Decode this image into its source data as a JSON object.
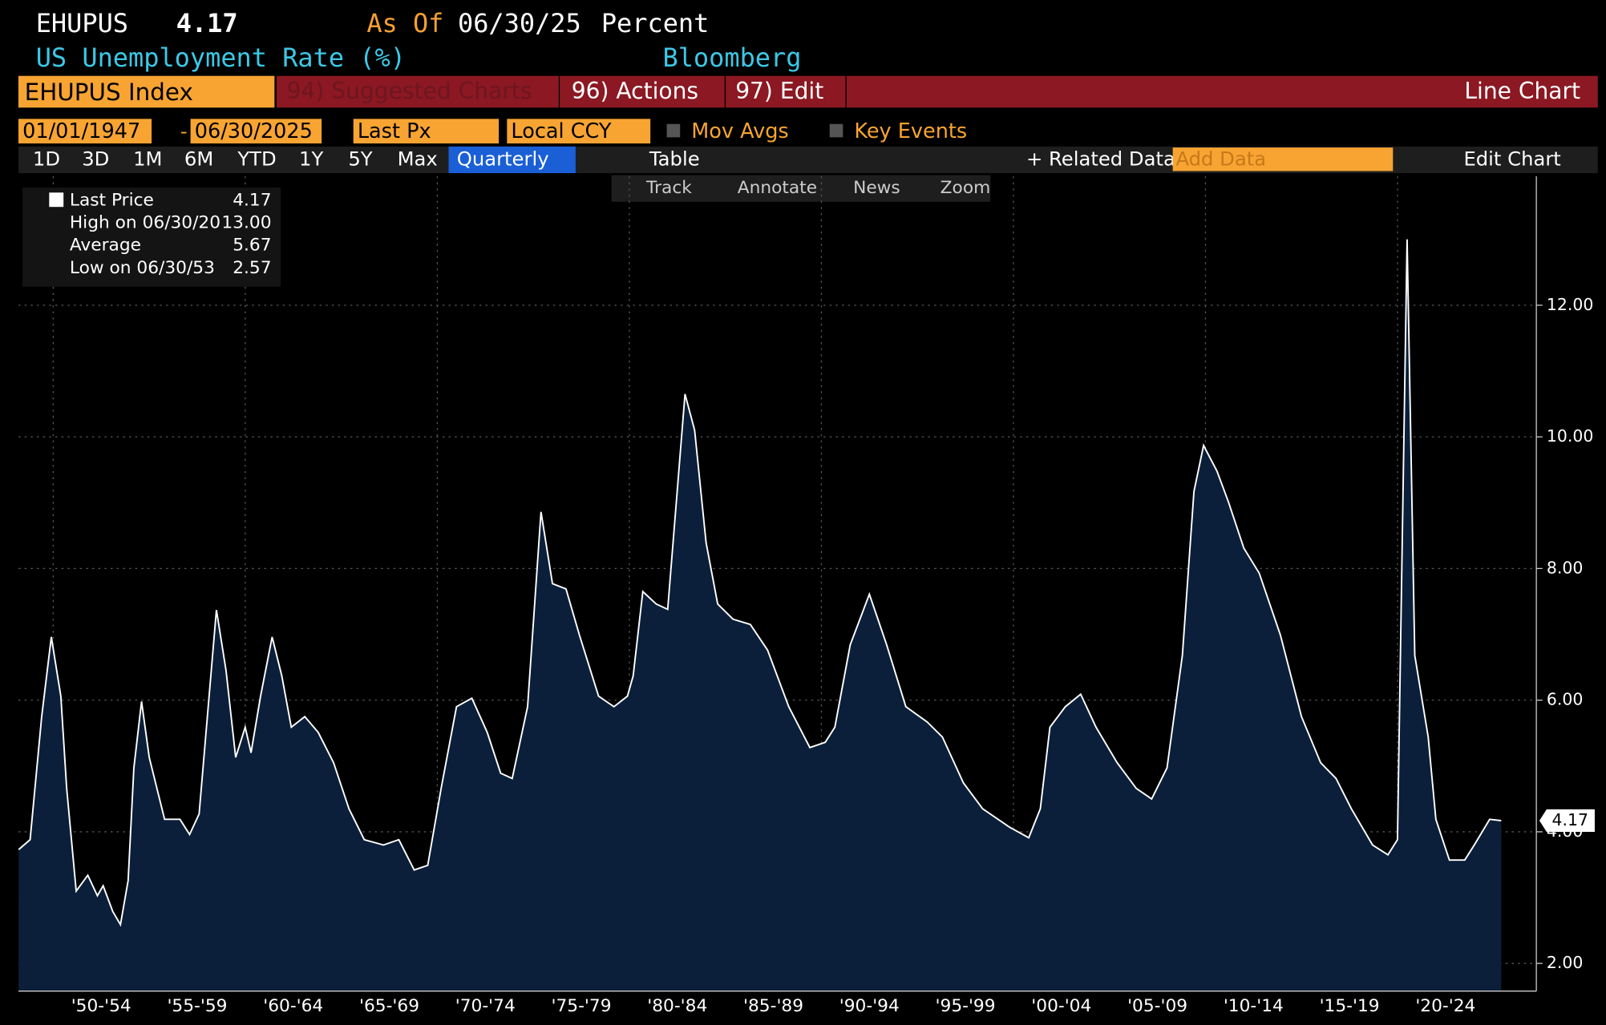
{
  "header": {
    "ticker": "EHUPUS",
    "last": "4.17",
    "as_of_label": "As Of",
    "as_of": "06/30/25",
    "units": "Percent",
    "name": "US Unemployment Rate (%)",
    "source": "Bloomberg"
  },
  "toolbar": {
    "security": "EHUPUS Index",
    "suggested": "94) Suggested Charts",
    "actions": "96) Actions",
    "edit": "97) Edit",
    "chart_kind": "Line Chart"
  },
  "controls": {
    "start": "01/01/1947",
    "dash": "-",
    "end": "06/30/2025",
    "field": "Last Px",
    "currency": "Local CCY",
    "mov_avgs": "Mov Avgs",
    "key_events": "Key Events",
    "ranges": [
      "1D",
      "3D",
      "1M",
      "6M",
      "YTD",
      "1Y",
      "5Y",
      "Max"
    ],
    "period": "Quarterly",
    "table": "Table",
    "related": "+ Related Data",
    "add_data": "Add Data",
    "edit_chart": "Edit Chart",
    "tools": [
      "Track",
      "Annotate",
      "News",
      "Zoom"
    ]
  },
  "legend": {
    "rows": [
      [
        "Last Price",
        "4.17"
      ],
      [
        "High on 06/30/20",
        "13.00"
      ],
      [
        "Average",
        "5.67"
      ],
      [
        "Low on 06/30/53",
        "2.57"
      ]
    ]
  },
  "chart_data": {
    "type": "line",
    "color": "#ffffff",
    "area_color": "#0b1f3a",
    "x": [
      1948.2,
      1948.8,
      1949.4,
      1949.9,
      1950.4,
      1950.7,
      1951.2,
      1951.8,
      1952.3,
      1952.6,
      1953.1,
      1953.5,
      1953.9,
      1954.2,
      1954.6,
      1955.0,
      1955.8,
      1956.6,
      1957.1,
      1957.6,
      1958.5,
      1959.0,
      1959.5,
      1960.0,
      1960.3,
      1960.8,
      1961.4,
      1961.9,
      1962.4,
      1963.1,
      1963.8,
      1964.6,
      1965.4,
      1966.2,
      1967.2,
      1968.0,
      1968.8,
      1969.5,
      1970.2,
      1971.0,
      1971.8,
      1972.6,
      1973.3,
      1973.9,
      1974.7,
      1975.4,
      1976.0,
      1976.7,
      1977.4,
      1978.4,
      1979.2,
      1979.9,
      1980.2,
      1980.7,
      1981.4,
      1982.0,
      1982.9,
      1983.4,
      1984.0,
      1984.6,
      1985.4,
      1986.3,
      1987.2,
      1988.3,
      1989.4,
      1990.2,
      1990.7,
      1991.5,
      1992.5,
      1993.4,
      1994.4,
      1995.5,
      1996.3,
      1997.4,
      1998.4,
      1999.8,
      2000.8,
      2001.4,
      2001.9,
      2002.7,
      2003.5,
      2004.3,
      2005.4,
      2006.4,
      2007.2,
      2008.0,
      2008.8,
      2009.4,
      2009.9,
      2010.6,
      2011.2,
      2012.0,
      2012.8,
      2013.9,
      2015.0,
      2016.0,
      2016.8,
      2017.6,
      2018.7,
      2019.5,
      2020.0,
      2020.5,
      2020.9,
      2021.6,
      2022.0,
      2022.7,
      2023.5,
      2024.0,
      2024.8,
      2025.4
    ],
    "values": [
      3.73,
      3.88,
      5.75,
      6.96,
      6.06,
      4.66,
      3.1,
      3.34,
      3.03,
      3.18,
      2.79,
      2.59,
      3.26,
      4.97,
      5.98,
      5.13,
      4.19,
      4.19,
      3.96,
      4.27,
      7.37,
      6.45,
      5.13,
      5.59,
      5.2,
      6.06,
      6.96,
      6.37,
      5.59,
      5.75,
      5.51,
      5.05,
      4.35,
      3.88,
      3.8,
      3.88,
      3.42,
      3.49,
      4.66,
      5.9,
      6.03,
      5.51,
      4.89,
      4.81,
      5.9,
      8.86,
      7.77,
      7.69,
      6.99,
      6.06,
      5.9,
      6.06,
      6.37,
      7.65,
      7.46,
      7.38,
      10.65,
      10.1,
      8.39,
      7.46,
      7.23,
      7.15,
      6.76,
      5.9,
      5.28,
      5.36,
      5.59,
      6.84,
      7.61,
      6.84,
      5.9,
      5.67,
      5.44,
      4.74,
      4.35,
      4.07,
      3.91,
      4.35,
      5.59,
      5.9,
      6.09,
      5.59,
      5.05,
      4.66,
      4.5,
      4.97,
      6.68,
      9.17,
      9.87,
      9.48,
      9.01,
      8.31,
      7.93,
      6.99,
      5.75,
      5.05,
      4.81,
      4.35,
      3.8,
      3.65,
      3.88,
      13.0,
      6.68,
      5.44,
      4.19,
      3.57,
      3.57,
      3.8,
      4.19,
      4.17
    ],
    "last_label": "4.17",
    "xlim": [
      1948.19,
      2027.23
    ],
    "ylim": [
      1.58,
      13.96
    ],
    "xgrid": [
      1950,
      1960,
      1970,
      1980,
      1990,
      2000,
      2010,
      2020
    ],
    "xticks": [
      {
        "value": 1952.5,
        "label": "'50-'54"
      },
      {
        "value": 1957.5,
        "label": "'55-'59"
      },
      {
        "value": 1962.5,
        "label": "'60-'64"
      },
      {
        "value": 1967.5,
        "label": "'65-'69"
      },
      {
        "value": 1972.5,
        "label": "'70-'74"
      },
      {
        "value": 1977.5,
        "label": "'75-'79"
      },
      {
        "value": 1982.5,
        "label": "'80-'84"
      },
      {
        "value": 1987.5,
        "label": "'85-'89"
      },
      {
        "value": 1992.5,
        "label": "'90-'94"
      },
      {
        "value": 1997.5,
        "label": "'95-'99"
      },
      {
        "value": 2002.5,
        "label": "'00-'04"
      },
      {
        "value": 2007.5,
        "label": "'05-'09"
      },
      {
        "value": 2012.5,
        "label": "'10-'14"
      },
      {
        "value": 2017.5,
        "label": "'15-'19"
      },
      {
        "value": 2022.5,
        "label": "'20-'24"
      }
    ],
    "yticks": [
      {
        "value": 2,
        "label": "2.00"
      },
      {
        "value": 4,
        "label": "4.00"
      },
      {
        "value": 6,
        "label": "6.00"
      },
      {
        "value": 8,
        "label": "8.00"
      },
      {
        "value": 10,
        "label": "10.00"
      },
      {
        "value": 12,
        "label": "12.00"
      }
    ],
    "grid": true
  }
}
